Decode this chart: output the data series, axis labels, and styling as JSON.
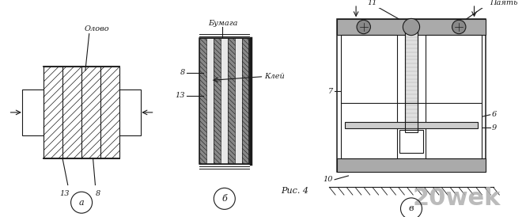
{
  "bg_color": "#ffffff",
  "line_color": "#1a1a1a",
  "fig_label": "Рис. 4",
  "watermark": "20wek",
  "panels": [
    "а",
    "б",
    "в"
  ]
}
